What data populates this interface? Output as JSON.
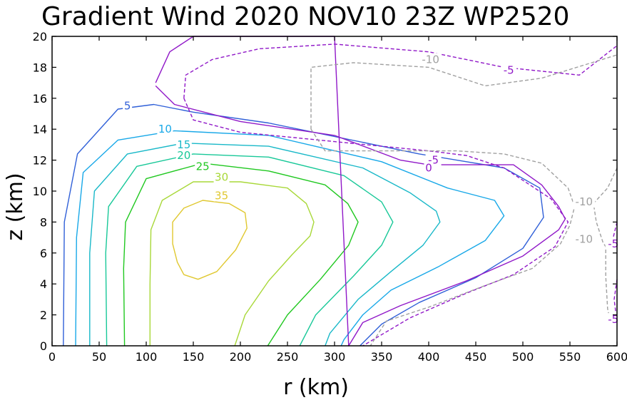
{
  "chart_data": {
    "type": "contour",
    "title": "Gradient Wind 2020 NOV10 23Z  WP2520",
    "xlabel": "r (km)",
    "ylabel": "z (km)",
    "xlim": [
      0,
      600
    ],
    "ylim": [
      0,
      20
    ],
    "x_ticks": [
      0,
      50,
      100,
      150,
      200,
      250,
      300,
      350,
      400,
      450,
      500,
      550,
      600
    ],
    "y_ticks": [
      0,
      2,
      4,
      6,
      8,
      10,
      12,
      14,
      16,
      18,
      20
    ],
    "grid": false,
    "levels": [
      {
        "value": 35,
        "label": "35",
        "color": "#e0c830",
        "dashed": false,
        "points": [
          [
            140,
            4.6
          ],
          [
            155,
            4.3
          ],
          [
            175,
            4.8
          ],
          [
            195,
            6.2
          ],
          [
            207,
            7.6
          ],
          [
            205,
            8.6
          ],
          [
            188,
            9.2
          ],
          [
            160,
            9.4
          ],
          [
            140,
            8.9
          ],
          [
            128,
            8.0
          ],
          [
            128,
            6.6
          ],
          [
            133,
            5.4
          ],
          [
            140,
            4.6
          ]
        ]
      },
      {
        "value": 30,
        "label": "30",
        "color": "#a8d838",
        "dashed": false,
        "points": [
          [
            104,
            0
          ],
          [
            104,
            4
          ],
          [
            105,
            7.5
          ],
          [
            117,
            9.4
          ],
          [
            150,
            10.6
          ],
          [
            200,
            10.6
          ],
          [
            250,
            10.2
          ],
          [
            270,
            9.2
          ],
          [
            278,
            8
          ],
          [
            274,
            7.1
          ],
          [
            255,
            5.9
          ],
          [
            230,
            4.2
          ],
          [
            205,
            2
          ],
          [
            194,
            0
          ]
        ]
      },
      {
        "value": 25,
        "label": "25",
        "color": "#20c820",
        "dashed": false,
        "points": [
          [
            77,
            0
          ],
          [
            76,
            5
          ],
          [
            78,
            8
          ],
          [
            100,
            10.8
          ],
          [
            160,
            11.8
          ],
          [
            230,
            11.3
          ],
          [
            290,
            10.4
          ],
          [
            314,
            9.2
          ],
          [
            325,
            8
          ],
          [
            315,
            6.5
          ],
          [
            285,
            4.3
          ],
          [
            250,
            2
          ],
          [
            229,
            0
          ]
        ]
      },
      {
        "value": 20,
        "label": "20",
        "color": "#18c898",
        "dashed": false,
        "points": [
          [
            58,
            0
          ],
          [
            57,
            6
          ],
          [
            60,
            9
          ],
          [
            90,
            11.6
          ],
          [
            150,
            12.4
          ],
          [
            230,
            12.2
          ],
          [
            310,
            11
          ],
          [
            350,
            9.3
          ],
          [
            362,
            8
          ],
          [
            350,
            6.5
          ],
          [
            320,
            4.5
          ],
          [
            280,
            2
          ],
          [
            263,
            0
          ]
        ]
      },
      {
        "value": 15,
        "label": "15",
        "color": "#18b8c8",
        "dashed": false,
        "points": [
          [
            40,
            0
          ],
          [
            40,
            6
          ],
          [
            45,
            10
          ],
          [
            80,
            12.4
          ],
          [
            140,
            13.1
          ],
          [
            230,
            12.9
          ],
          [
            330,
            11.5
          ],
          [
            380,
            9.9
          ],
          [
            408,
            8.7
          ],
          [
            412,
            8
          ],
          [
            394,
            6.5
          ],
          [
            360,
            4.8
          ],
          [
            325,
            3
          ],
          [
            295,
            0.8
          ],
          [
            290,
            0
          ]
        ]
      },
      {
        "value": 10,
        "label": "10",
        "color": "#18a8e8",
        "dashed": false,
        "points": [
          [
            25,
            0
          ],
          [
            26,
            7
          ],
          [
            33,
            11.2
          ],
          [
            70,
            13.3
          ],
          [
            130,
            13.9
          ],
          [
            230,
            13.6
          ],
          [
            350,
            11.9
          ],
          [
            420,
            10.2
          ],
          [
            470,
            9.4
          ],
          [
            480,
            8.4
          ],
          [
            460,
            6.8
          ],
          [
            410,
            5.1
          ],
          [
            360,
            3.6
          ],
          [
            330,
            2
          ],
          [
            310,
            0.4
          ],
          [
            307,
            0
          ]
        ]
      },
      {
        "value": 5,
        "label": "5",
        "color": "#3060d8",
        "dashed": false,
        "points": [
          [
            12,
            0
          ],
          [
            13,
            8
          ],
          [
            27,
            12.4
          ],
          [
            70,
            15.3
          ],
          [
            108,
            15.6
          ],
          [
            150,
            15.1
          ],
          [
            230,
            14.4
          ],
          [
            390,
            12.4
          ],
          [
            480,
            11.5
          ],
          [
            518,
            10.2
          ],
          [
            522,
            8.3
          ],
          [
            500,
            6.3
          ],
          [
            450,
            4.4
          ],
          [
            390,
            2.8
          ],
          [
            350,
            1.4
          ],
          [
            327,
            0
          ]
        ]
      },
      {
        "value": 0,
        "label": "0",
        "color": "#9018c8",
        "dashed": false,
        "points": [
          [
            110,
            17
          ],
          [
            125,
            19
          ],
          [
            150,
            20
          ],
          [
            300,
            20
          ],
          [
            315,
            0
          ],
          [
            330,
            1.5
          ],
          [
            370,
            2.6
          ],
          [
            440,
            4.2
          ],
          [
            500,
            5.8
          ],
          [
            538,
            7.5
          ],
          [
            545,
            8.2
          ],
          [
            538,
            9
          ],
          [
            520,
            10.4
          ],
          [
            490,
            11.7
          ],
          [
            460,
            11.7
          ],
          [
            400,
            11.7
          ],
          [
            370,
            12
          ],
          [
            300,
            13.6
          ],
          [
            200,
            14.5
          ],
          [
            130,
            15.6
          ],
          [
            110,
            16.8
          ]
        ]
      },
      {
        "value": -5,
        "label": "-5",
        "color": "#9018c8",
        "dashed": true,
        "points": [
          [
            140,
            16
          ],
          [
            142,
            17.5
          ],
          [
            170,
            18.5
          ],
          [
            220,
            19.2
          ],
          [
            300,
            19.5
          ],
          [
            400,
            19
          ],
          [
            480,
            18
          ],
          [
            560,
            17.5
          ],
          [
            600,
            19.4
          ]
        ]
      },
      {
        "value": -5,
        "label": "-5",
        "color": "#9018c8",
        "dashed": true,
        "points": [
          [
            140,
            16
          ],
          [
            150,
            14.6
          ],
          [
            200,
            13.8
          ],
          [
            300,
            13.2
          ],
          [
            400,
            12.6
          ],
          [
            440,
            12.3
          ],
          [
            480,
            11.5
          ],
          [
            530,
            9.5
          ],
          [
            548,
            8
          ],
          [
            534,
            6.4
          ],
          [
            490,
            4.6
          ],
          [
            440,
            3.4
          ],
          [
            380,
            1.8
          ],
          [
            330,
            0
          ]
        ]
      },
      {
        "value": -10,
        "label": "-10",
        "color": "#a0a0a0",
        "dashed": true,
        "points": [
          [
            275,
            14
          ],
          [
            275,
            18
          ],
          [
            320,
            18.3
          ],
          [
            400,
            18
          ],
          [
            460,
            16.8
          ],
          [
            520,
            17.3
          ],
          [
            600,
            18.8
          ]
        ]
      },
      {
        "value": -10,
        "label": "-10",
        "color": "#a0a0a0",
        "dashed": true,
        "points": [
          [
            275,
            14
          ],
          [
            290,
            12.6
          ],
          [
            350,
            12.6
          ],
          [
            430,
            12.6
          ],
          [
            480,
            12.4
          ],
          [
            520,
            11.8
          ],
          [
            548,
            10.2
          ],
          [
            555,
            9
          ],
          [
            550,
            7.8
          ],
          [
            540,
            6.6
          ],
          [
            510,
            5
          ],
          [
            460,
            3.9
          ],
          [
            400,
            2.5
          ],
          [
            355,
            1.6
          ],
          [
            338,
            0
          ]
        ]
      },
      {
        "value": -10,
        "label": "-10",
        "color": "#a0a0a0",
        "dashed": true,
        "points": [
          [
            600,
            11.5
          ],
          [
            590,
            10.2
          ],
          [
            575,
            9.2
          ],
          [
            578,
            8
          ],
          [
            585,
            6.7
          ],
          [
            588,
            6.4
          ],
          [
            588,
            4.5
          ],
          [
            590,
            2.4
          ],
          [
            593,
            1.5
          ]
        ]
      },
      {
        "value": -5,
        "label": "-5",
        "color": "#9018c8",
        "dashed": true,
        "points": [
          [
            600,
            8
          ],
          [
            596,
            7
          ],
          [
            600,
            6.5
          ]
        ]
      },
      {
        "value": -5,
        "label": "-5",
        "color": "#9018c8",
        "dashed": true,
        "points": [
          [
            600,
            4.3
          ],
          [
            597,
            3
          ],
          [
            600,
            1.5
          ]
        ]
      }
    ],
    "contour_labels": [
      {
        "text": "5",
        "x": 80,
        "y": 15.5,
        "color": "#3060d8"
      },
      {
        "text": "10",
        "x": 120,
        "y": 14.0,
        "color": "#18a8e8"
      },
      {
        "text": "15",
        "x": 140,
        "y": 13.0,
        "color": "#18b8c8"
      },
      {
        "text": "20",
        "x": 140,
        "y": 12.3,
        "color": "#18c898"
      },
      {
        "text": "25",
        "x": 160,
        "y": 11.6,
        "color": "#20c820"
      },
      {
        "text": "30",
        "x": 180,
        "y": 10.9,
        "color": "#a8d838"
      },
      {
        "text": "35",
        "x": 180,
        "y": 9.7,
        "color": "#e0c830"
      },
      {
        "text": "-10",
        "x": 402,
        "y": 18.5,
        "color": "#a0a0a0"
      },
      {
        "text": "-5",
        "x": 485,
        "y": 17.8,
        "color": "#9018c8"
      },
      {
        "text": "-5",
        "x": 405,
        "y": 12.0,
        "color": "#9018c8"
      },
      {
        "text": "0",
        "x": 400,
        "y": 11.5,
        "color": "#9018c8"
      },
      {
        "text": "-10",
        "x": 565,
        "y": 9.3,
        "color": "#a0a0a0"
      },
      {
        "text": "-10",
        "x": 565,
        "y": 6.9,
        "color": "#a0a0a0"
      },
      {
        "text": "-5",
        "x": 596,
        "y": 6.6,
        "color": "#9018c8"
      },
      {
        "text": "-5",
        "x": 596,
        "y": 1.7,
        "color": "#9018c8"
      }
    ]
  }
}
